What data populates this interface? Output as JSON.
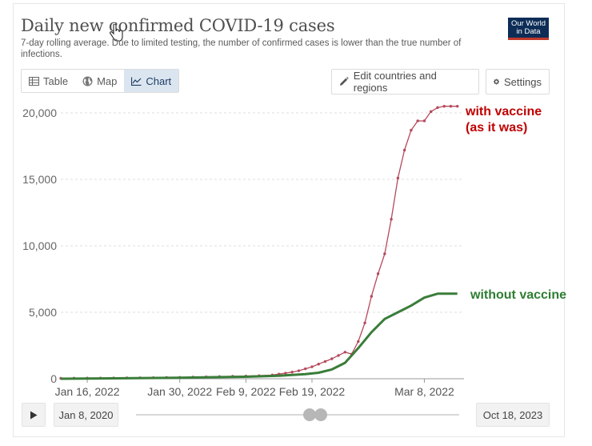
{
  "header": {
    "title": "Daily new confirmed COVID-19 cases",
    "subtitle": "7-day rolling average. Due to limited testing, the number of confirmed cases is lower than the true number of infections.",
    "logo_line1": "Our World",
    "logo_line2": "in Data"
  },
  "tabs": [
    {
      "label": "Table",
      "icon": "table-icon"
    },
    {
      "label": "Map",
      "icon": "globe-icon"
    },
    {
      "label": "Chart",
      "icon": "line-chart-icon",
      "active": true
    }
  ],
  "controls": {
    "edit_label": "Edit countries and regions",
    "settings_label": "Settings"
  },
  "timeline": {
    "start": "Jan 8, 2020",
    "end": "Oct 18, 2023"
  },
  "colors": {
    "with_vaccine": "#b5495b",
    "without_vaccine": "#3a7d3a",
    "with_label": "#c00000",
    "without_label": "#2e7d32",
    "grid": "#dddddd"
  },
  "chart_data": {
    "type": "line",
    "title": "Daily new confirmed COVID-19 cases",
    "subtitle": "7-day rolling average. Due to limited testing, the number of confirmed cases is lower than the true number of infections.",
    "x_start": "2022-01-12",
    "x_end": "2022-03-14",
    "xlim": [
      "2022-01-12",
      "2022-03-14"
    ],
    "ylim": [
      0,
      20000
    ],
    "yticks": [
      0,
      5000,
      10000,
      15000,
      20000
    ],
    "ytick_labels": [
      "0",
      "5,000",
      "10,000",
      "15,000",
      "20,000"
    ],
    "xticks": [
      "2022-01-16",
      "2022-01-30",
      "2022-02-09",
      "2022-02-19",
      "2022-03-08"
    ],
    "xtick_labels": [
      "Jan 16, 2022",
      "Jan 30, 2022",
      "Feb 9, 2022",
      "Feb 19, 2022",
      "Mar 8, 2022"
    ],
    "grid": true,
    "series": [
      {
        "name": "with vaccine",
        "label": [
          "with vaccine",
          "(as it was)"
        ],
        "color": "#b5495b",
        "markers": true,
        "x": [
          "2022-01-12",
          "2022-01-14",
          "2022-01-16",
          "2022-01-18",
          "2022-01-20",
          "2022-01-22",
          "2022-01-24",
          "2022-01-26",
          "2022-01-28",
          "2022-01-30",
          "2022-02-01",
          "2022-02-03",
          "2022-02-05",
          "2022-02-07",
          "2022-02-09",
          "2022-02-11",
          "2022-02-13",
          "2022-02-14",
          "2022-02-15",
          "2022-02-16",
          "2022-02-17",
          "2022-02-18",
          "2022-02-19",
          "2022-02-20",
          "2022-02-21",
          "2022-02-22",
          "2022-02-23",
          "2022-02-24",
          "2022-02-25",
          "2022-02-26",
          "2022-02-27",
          "2022-02-28",
          "2022-03-01",
          "2022-03-02",
          "2022-03-03",
          "2022-03-04",
          "2022-03-05",
          "2022-03-06",
          "2022-03-07",
          "2022-03-08",
          "2022-03-09",
          "2022-03-10",
          "2022-03-11",
          "2022-03-12",
          "2022-03-13"
        ],
        "y": [
          30,
          40,
          45,
          50,
          55,
          60,
          70,
          80,
          90,
          100,
          120,
          140,
          160,
          180,
          200,
          230,
          280,
          350,
          420,
          500,
          600,
          750,
          900,
          1100,
          1300,
          1500,
          1750,
          2000,
          1850,
          2800,
          4200,
          6200,
          7900,
          9400,
          12000,
          15100,
          17200,
          18700,
          19400,
          19400,
          20100,
          20400,
          20500,
          20500,
          20500
        ]
      },
      {
        "name": "without vaccine",
        "label": [
          "without vaccine"
        ],
        "color": "#3a7d3a",
        "markers": false,
        "x": [
          "2022-01-12",
          "2022-01-20",
          "2022-01-30",
          "2022-02-09",
          "2022-02-14",
          "2022-02-18",
          "2022-02-20",
          "2022-02-22",
          "2022-02-24",
          "2022-02-26",
          "2022-02-28",
          "2022-03-02",
          "2022-03-04",
          "2022-03-06",
          "2022-03-08",
          "2022-03-10",
          "2022-03-13"
        ],
        "y": [
          0,
          30,
          80,
          150,
          230,
          350,
          450,
          700,
          1200,
          2300,
          3500,
          4500,
          5000,
          5500,
          6100,
          6400,
          6400
        ]
      }
    ]
  }
}
